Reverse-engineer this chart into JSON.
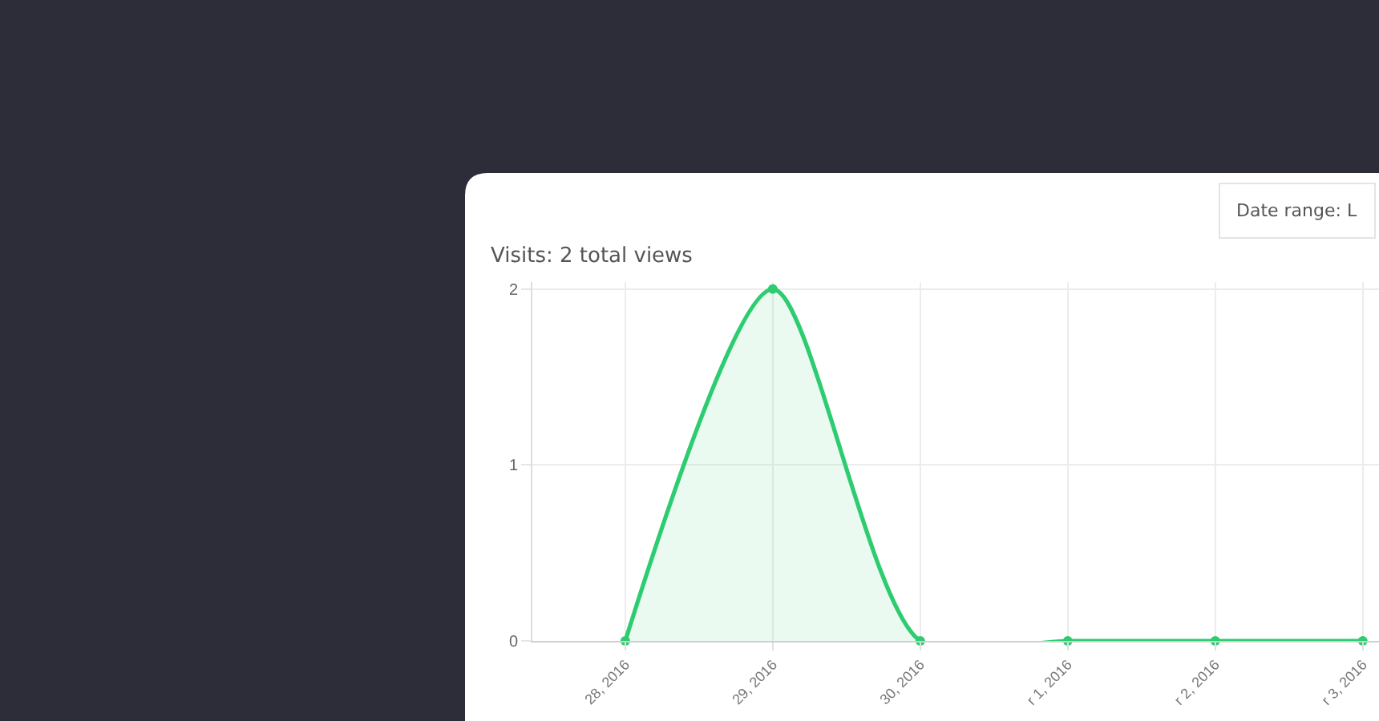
{
  "chart_data": {
    "type": "area",
    "title": "Visits: 2 total views",
    "categories": [
      "28, 2016",
      "29, 2016",
      "30, 2016",
      "r 1, 2016",
      "r 2, 2016",
      "r 3, 2016"
    ],
    "series": [
      {
        "color": "#2ecc71",
        "values": [
          0,
          2,
          0,
          0,
          0,
          0
        ]
      }
    ],
    "ylim": [
      0,
      2.04
    ],
    "yticks": [
      0,
      1,
      2
    ],
    "grid": true,
    "marker": "circle",
    "annotations": [
      "Date range: L"
    ]
  }
}
